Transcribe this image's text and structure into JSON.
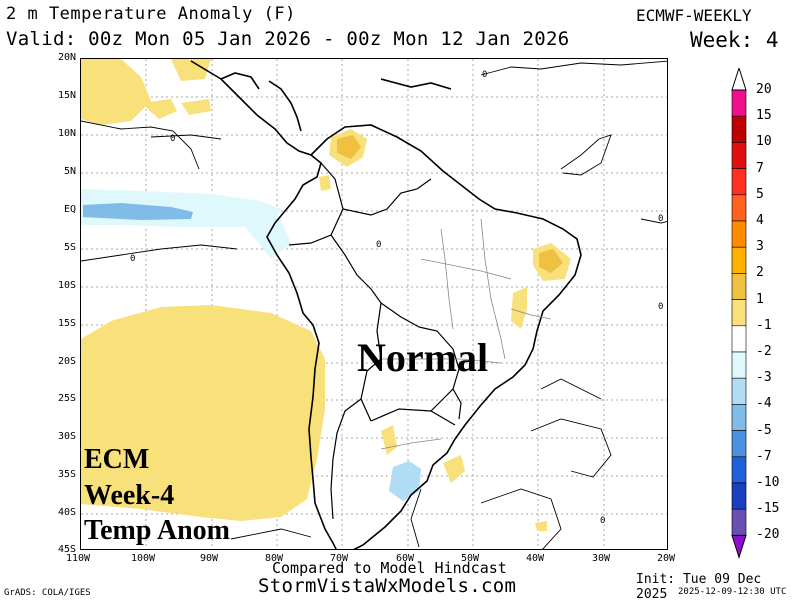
{
  "header": {
    "title": "2 m Temperature Anomaly (F)",
    "valid": "Valid: 00z Mon 05 Jan 2026 - 00z Mon 12 Jan 2026",
    "model": "ECMWF-WEEKLY",
    "week": "Week: 4"
  },
  "map": {
    "lat_labels": [
      "20N",
      "15N",
      "10N",
      "5N",
      "EQ",
      "5S",
      "10S",
      "15S",
      "20S",
      "25S",
      "30S",
      "35S",
      "40S",
      "45S"
    ],
    "lon_labels": [
      "110W",
      "100W",
      "90W",
      "80W",
      "70W",
      "60W",
      "50W",
      "40W",
      "30W",
      "20W"
    ],
    "contour_label": "0",
    "shading_colors": {
      "warm_1_2": "#f8e07a",
      "warm_2_3": "#f0c040",
      "cool_1_2": "#def8fc",
      "cool_2_3": "#b0dcf4",
      "cool_3_4": "#80bce8"
    }
  },
  "overlay": {
    "center_text": "Normal",
    "badge_lines": [
      "ECM",
      "Week-4",
      "Temp Anom"
    ]
  },
  "footer": {
    "line1": "Compared to Model Hindcast",
    "line2": "StormVistaWxModels.com",
    "credit": "GrADS: COLA/IGES",
    "init": "Init: Tue 09 Dec 2025",
    "generated": "2025-12-09-12:30 UTC"
  },
  "colorbar": {
    "labels": [
      "20",
      "15",
      "10",
      "7",
      "5",
      "4",
      "3",
      "2",
      "1",
      "-1",
      "-2",
      "-3",
      "-4",
      "-5",
      "-7",
      "-10",
      "-15",
      "-20"
    ],
    "colors": [
      "#f0108c",
      "#c00000",
      "#e01010",
      "#ff3020",
      "#ff6020",
      "#ff8c00",
      "#ffb000",
      "#f0c040",
      "#f8e07a",
      "#ffffff",
      "#def8fc",
      "#b0dcf4",
      "#80bce8",
      "#4c90e0",
      "#2060d8",
      "#1840c0",
      "#6a50b0",
      "#8c10d0"
    ]
  }
}
